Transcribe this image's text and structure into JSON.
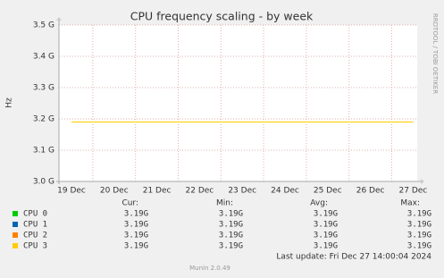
{
  "chart_data": {
    "type": "line",
    "title": "CPU frequency scaling - by week",
    "ylabel": "Hz",
    "side_label": "RRDTOOL / TOBI OETIKER",
    "categories": [
      "19 Dec",
      "20 Dec",
      "21 Dec",
      "22 Dec",
      "23 Dec",
      "24 Dec",
      "25 Dec",
      "26 Dec",
      "27 Dec"
    ],
    "ylim": [
      3000000000,
      3500000000
    ],
    "yticks": [
      {
        "value": 3000000000,
        "label": "3.0 G"
      },
      {
        "value": 3100000000,
        "label": "3.1 G"
      },
      {
        "value": 3200000000,
        "label": "3.2 G"
      },
      {
        "value": 3300000000,
        "label": "3.3 G"
      },
      {
        "value": 3400000000,
        "label": "3.4 G"
      },
      {
        "value": 3500000000,
        "label": "3.5 G"
      }
    ],
    "grid": true,
    "stats_headers": [
      "Cur:",
      "Min:",
      "Avg:",
      "Max:"
    ],
    "series": [
      {
        "name": "CPU 0",
        "color": "#00cc00",
        "values": [
          3190000000,
          3190000000,
          3190000000,
          3190000000,
          3190000000,
          3190000000,
          3190000000,
          3190000000,
          3190000000
        ],
        "stats": [
          "3.19G",
          "3.19G",
          "3.19G",
          "3.19G"
        ]
      },
      {
        "name": "CPU 1",
        "color": "#0066b3",
        "values": [
          3190000000,
          3190000000,
          3190000000,
          3190000000,
          3190000000,
          3190000000,
          3190000000,
          3190000000,
          3190000000
        ],
        "stats": [
          "3.19G",
          "3.19G",
          "3.19G",
          "3.19G"
        ]
      },
      {
        "name": "CPU 2",
        "color": "#ff8000",
        "values": [
          3190000000,
          3190000000,
          3190000000,
          3190000000,
          3190000000,
          3190000000,
          3190000000,
          3190000000,
          3190000000
        ],
        "stats": [
          "3.19G",
          "3.19G",
          "3.19G",
          "3.19G"
        ]
      },
      {
        "name": "CPU 3",
        "color": "#ffcc00",
        "values": [
          3190000000,
          3190000000,
          3190000000,
          3190000000,
          3190000000,
          3190000000,
          3190000000,
          3190000000,
          3190000000
        ],
        "stats": [
          "3.19G",
          "3.19G",
          "3.19G",
          "3.19G"
        ]
      }
    ],
    "last_update": "Last update: Fri Dec 27 14:00:04 2024",
    "footer": "Munin 2.0.49"
  }
}
